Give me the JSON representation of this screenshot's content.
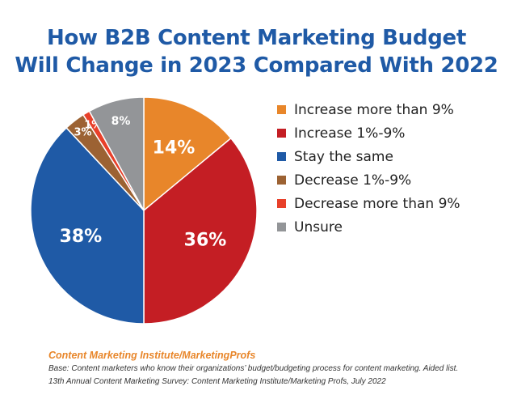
{
  "chart_data": {
    "type": "pie",
    "title_lines": [
      "How B2B Content Marketing Budget",
      "Will Change in 2023 Compared With 2022"
    ],
    "slices": [
      {
        "label": "Increase more than 9%",
        "value": 14,
        "display": "14%",
        "color": "#e8862a"
      },
      {
        "label": "Increase 1%-9%",
        "value": 36,
        "display": "36%",
        "color": "#c41e24"
      },
      {
        "label": "Stay the same",
        "value": 38,
        "display": "38%",
        "color": "#1f5aa6"
      },
      {
        "label": "Decrease 1%-9%",
        "value": 3,
        "display": "3%",
        "color": "#9c6233"
      },
      {
        "label": "Decrease more than 9%",
        "value": 1,
        "display": "1%",
        "color": "#e8402a"
      },
      {
        "label": "Unsure",
        "value": 8,
        "display": "8%",
        "color": "#939598"
      }
    ],
    "start": "top",
    "direction": "clockwise",
    "legend_position": "right"
  },
  "footer": {
    "source": "Content Marketing Institute/MarketingProfs",
    "base": "Base: Content marketers who know their organizations’ budget/budgeting process for content marketing. Aided list.",
    "survey": "13th Annual Content Marketing Survey: Content Marketing Institute/Marketing Profs, July 2022"
  }
}
